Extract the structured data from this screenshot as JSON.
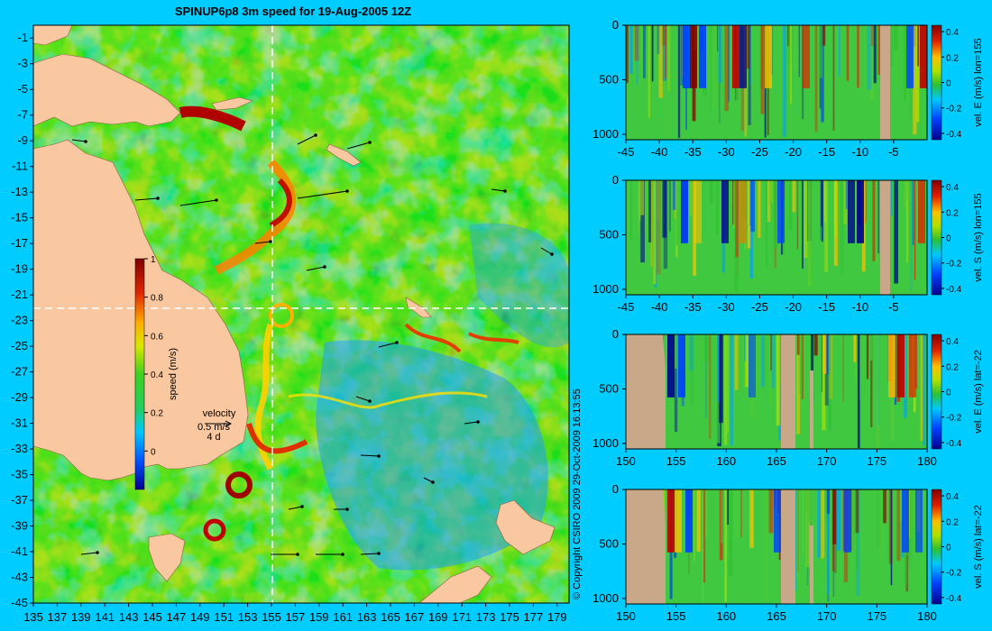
{
  "title": "SPINUP6p8 3m speed for 19-Aug-2005 12Z",
  "copyright": "© Copyright CSIRO 2009   29-Oct-2009 16:13:55",
  "map": {
    "x_ticks": [
      "135",
      "137",
      "139",
      "141",
      "143",
      "145",
      "147",
      "149",
      "151",
      "153",
      "155",
      "157",
      "159",
      "161",
      "163",
      "165",
      "167",
      "169",
      "171",
      "173",
      "175",
      "177",
      "179"
    ],
    "y_ticks": [
      "-1",
      "-3",
      "-5",
      "-7",
      "-9",
      "-11",
      "-13",
      "-15",
      "-17",
      "-19",
      "-21",
      "-23",
      "-25",
      "-27",
      "-29",
      "-31",
      "-33",
      "-35",
      "-37",
      "-39",
      "-41",
      "-43",
      "-45"
    ],
    "xlim": [
      135,
      180
    ],
    "ylim": [
      -45,
      0
    ],
    "section_lon": 155,
    "section_lat": -22,
    "colorbar": {
      "label": "speed (m/s)",
      "ticks": [
        "1",
        "0.8",
        "0.6",
        "0.4",
        "0.2",
        "0"
      ],
      "range": [
        -0.2,
        1
      ]
    },
    "velocity_key": {
      "title": "velocity",
      "speed": "0.5 m/s",
      "duration": "4 d"
    },
    "colors": {
      "land": "#f9c8a0",
      "ocean_mid": "#32cd32",
      "dashed_line": "#ffffff"
    }
  },
  "chart_data": [
    {
      "type": "heatmap",
      "title": "SPINUP6p8 3m speed for 19-Aug-2005 12Z",
      "xlabel": "",
      "ylabel": "",
      "xlim": [
        135,
        180
      ],
      "ylim": [
        -45,
        0
      ],
      "colorbar_label": "speed (m/s)",
      "colorbar_range": [
        -0.2,
        1
      ]
    },
    {
      "type": "heatmap",
      "colorbar_label": "vel. E (m/s) lon=155",
      "x_ticks": [
        "-45",
        "-40",
        "-35",
        "-30",
        "-25",
        "-20",
        "-15",
        "-10",
        "-5"
      ],
      "y_ticks": [
        "0",
        "500",
        "1000"
      ],
      "xlim": [
        -45,
        0
      ],
      "ylim": [
        1050,
        0
      ],
      "colorbar_ticks": [
        "0.4",
        "0.2",
        "0",
        "-0.2",
        "-0.4"
      ],
      "colorbar_range": [
        -0.45,
        0.45
      ]
    },
    {
      "type": "heatmap",
      "colorbar_label": "vel. S (m/s) lon=155",
      "x_ticks": [
        "-45",
        "-40",
        "-35",
        "-30",
        "-25",
        "-20",
        "-15",
        "-10",
        "-5"
      ],
      "y_ticks": [
        "0",
        "500",
        "1000"
      ],
      "xlim": [
        -45,
        0
      ],
      "ylim": [
        1050,
        0
      ],
      "colorbar_ticks": [
        "0.4",
        "0.2",
        "0",
        "-0.2",
        "-0.4"
      ],
      "colorbar_range": [
        -0.45,
        0.45
      ]
    },
    {
      "type": "heatmap",
      "colorbar_label": "vel. E (m/s) lat=-22",
      "x_ticks": [
        "150",
        "155",
        "160",
        "165",
        "170",
        "175",
        "180"
      ],
      "y_ticks": [
        "0",
        "500",
        "1000"
      ],
      "xlim": [
        150,
        180
      ],
      "ylim": [
        1050,
        0
      ],
      "colorbar_ticks": [
        "0.4",
        "0.2",
        "0",
        "-0.2",
        "-0.4"
      ],
      "colorbar_range": [
        -0.45,
        0.45
      ]
    },
    {
      "type": "heatmap",
      "colorbar_label": "vel. S (m/s) lat=-22",
      "x_ticks": [
        "150",
        "155",
        "160",
        "165",
        "170",
        "175",
        "180"
      ],
      "y_ticks": [
        "0",
        "500",
        "1000"
      ],
      "xlim": [
        150,
        180
      ],
      "ylim": [
        1050,
        0
      ],
      "colorbar_ticks": [
        "0.4",
        "0.2",
        "0",
        "-0.2",
        "-0.4"
      ],
      "colorbar_range": [
        -0.45,
        0.45
      ]
    }
  ],
  "panels": [
    {
      "cb_label": "vel. E (m/s) lon=155",
      "x_ticks": [
        "-45",
        "-40",
        "-35",
        "-30",
        "-25",
        "-20",
        "-15",
        "-10",
        "-5"
      ],
      "xlim": [
        -45,
        0
      ],
      "y_ticks": [
        "0",
        "500",
        "1000"
      ],
      "cb_ticks": [
        "0.4",
        "0.2",
        "0",
        "-0.2",
        "-0.4"
      ]
    },
    {
      "cb_label": "vel. S (m/s) lon=155",
      "x_ticks": [
        "-45",
        "-40",
        "-35",
        "-30",
        "-25",
        "-20",
        "-15",
        "-10",
        "-5"
      ],
      "xlim": [
        -45,
        0
      ],
      "y_ticks": [
        "0",
        "500",
        "1000"
      ],
      "cb_ticks": [
        "0.4",
        "0.2",
        "0",
        "-0.2",
        "-0.4"
      ]
    },
    {
      "cb_label": "vel. E (m/s) lat=-22",
      "x_ticks": [
        "150",
        "155",
        "160",
        "165",
        "170",
        "175",
        "180"
      ],
      "xlim": [
        150,
        180
      ],
      "y_ticks": [
        "0",
        "500",
        "1000"
      ],
      "cb_ticks": [
        "0.4",
        "0.2",
        "0",
        "-0.2",
        "-0.4"
      ]
    },
    {
      "cb_label": "vel. S (m/s) lat=-22",
      "x_ticks": [
        "150",
        "155",
        "160",
        "165",
        "170",
        "175",
        "180"
      ],
      "xlim": [
        150,
        180
      ],
      "y_ticks": [
        "0",
        "500",
        "1000"
      ],
      "cb_ticks": [
        "0.4",
        "0.2",
        "0",
        "-0.2",
        "-0.4"
      ]
    }
  ]
}
